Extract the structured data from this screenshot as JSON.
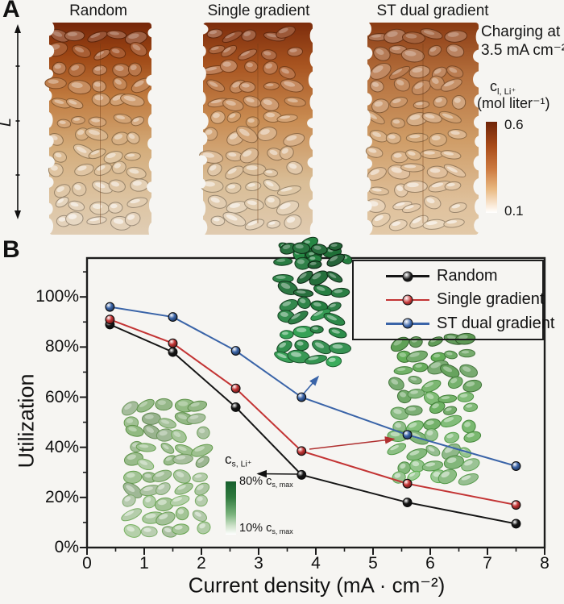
{
  "panel_a": {
    "label": "A",
    "columns": [
      {
        "title": "Random"
      },
      {
        "title": "Single gradient"
      },
      {
        "title": "ST dual gradient"
      }
    ],
    "axis_label": "L",
    "charging": {
      "line1": "Charging at",
      "line2": "3.5 mA cm⁻²"
    },
    "cl_label": {
      "base": "c",
      "sub": "l, Li⁺"
    },
    "cl_units": "(mol liter⁻¹)",
    "colorbar": {
      "max": "0.6",
      "min": "0.1",
      "top_color": "#6f2408",
      "bottom_color": "#ffffff"
    }
  },
  "panel_b": {
    "label": "B",
    "cs_label": {
      "base": "c",
      "sub": "s, Li⁺"
    },
    "cs_top": {
      "pre": "80% ",
      "base": "c",
      "sub": "s, max"
    },
    "cs_bottom": {
      "pre": "10% ",
      "base": "c",
      "sub": "s, max"
    },
    "inset_colorbar": {
      "top_color": "#175f2d",
      "bottom_color": "#ffffff"
    }
  },
  "chart_data": {
    "type": "line",
    "title": "",
    "xlabel": "Current density (mA · cm⁻²)",
    "ylabel": "Utilization",
    "xlim": [
      0,
      8
    ],
    "ylim": [
      0,
      115
    ],
    "x_ticks": [
      "0",
      "1",
      "2",
      "3",
      "4",
      "5",
      "6",
      "7",
      "8"
    ],
    "x_tick_values": [
      0,
      1,
      2,
      3,
      4,
      5,
      6,
      7,
      8
    ],
    "y_ticks": [
      "0%",
      "20%",
      "40%",
      "60%",
      "80%",
      "100%"
    ],
    "y_tick_values": [
      0,
      20,
      40,
      60,
      80,
      100
    ],
    "grid": false,
    "legend_position": "upper right",
    "x": [
      0.4,
      1.5,
      2.6,
      3.75,
      5.6,
      7.5
    ],
    "series": [
      {
        "name": "Random",
        "color": "#161616",
        "values": [
          89,
          78,
          56,
          29,
          18,
          9.5
        ]
      },
      {
        "name": "Single gradient",
        "color": "#c33434",
        "values": [
          91,
          81.5,
          63.5,
          38.5,
          25.5,
          17
        ]
      },
      {
        "name": "ST dual gradient",
        "color": "#3a64a8",
        "values": [
          96,
          92,
          78.5,
          60,
          45,
          32.5
        ]
      }
    ],
    "annotations": [
      {
        "series": "Random",
        "target": "low-utilization inset (left)"
      },
      {
        "series": "Single gradient",
        "target": "right inset"
      },
      {
        "series": "ST dual gradient",
        "target": "top inset"
      }
    ]
  }
}
